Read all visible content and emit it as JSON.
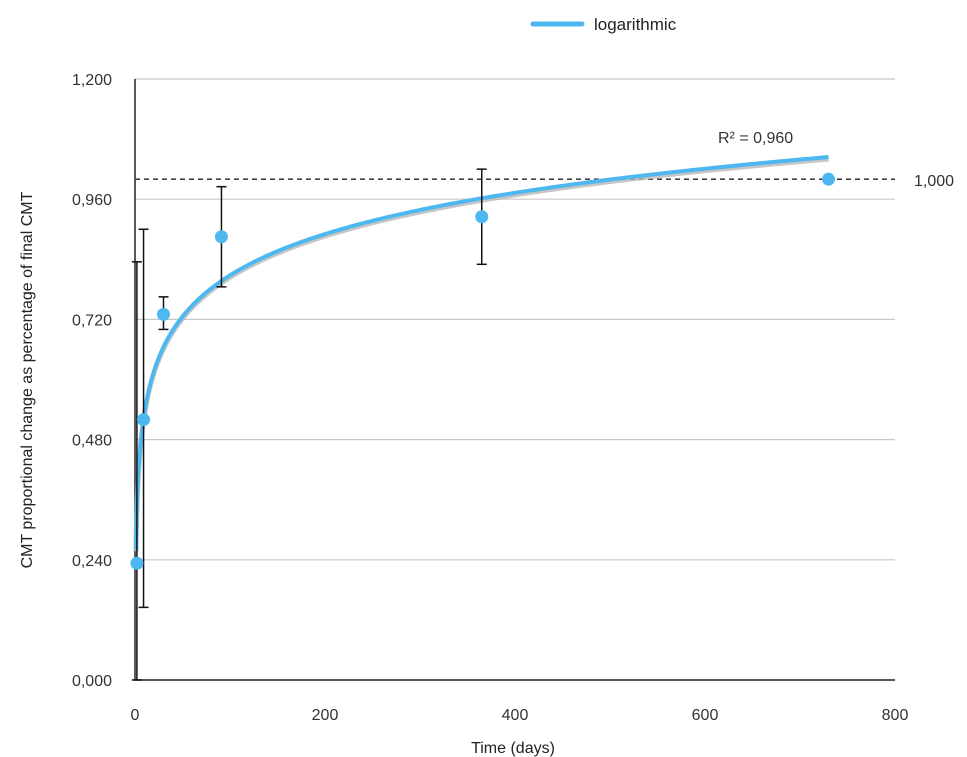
{
  "chart_data": {
    "type": "scatter",
    "xlabel": "Time (days)",
    "ylabel": "CMT proportional change as percentage of final CMT",
    "xlim": [
      0,
      800
    ],
    "ylim": [
      0,
      1.2
    ],
    "x_ticks": [
      "0",
      "200",
      "400",
      "600",
      "800"
    ],
    "y_ticks": [
      "0,000",
      "0,240",
      "0,480",
      "0,720",
      "0,960",
      "1,200"
    ],
    "grid": true,
    "legend_position": "top",
    "legend": [
      {
        "label": "logarithmic",
        "color": "#4db8f0"
      }
    ],
    "points": [
      {
        "x": 2,
        "y": 0.233,
        "err_low": 0.0,
        "err_high": 0.835
      },
      {
        "x": 9,
        "y": 0.52,
        "err_low": 0.145,
        "err_high": 0.9
      },
      {
        "x": 30,
        "y": 0.73,
        "err_low": 0.7,
        "err_high": 0.765
      },
      {
        "x": 91,
        "y": 0.885,
        "err_low": 0.785,
        "err_high": 0.985
      },
      {
        "x": 365,
        "y": 0.925,
        "err_low": 0.83,
        "err_high": 1.02
      },
      {
        "x": 730,
        "y": 1.0
      }
    ],
    "trendline": {
      "name": "logarithmic",
      "a": 0.1188,
      "b": 0.2609,
      "x_start": 1,
      "x_end": 730,
      "r2_label": "R² = 0,960",
      "color": "#4db8f0"
    },
    "reference_line": {
      "y": 1.0,
      "label": "1,000",
      "style": "dashed"
    },
    "marker_color": "#4db8f0"
  }
}
